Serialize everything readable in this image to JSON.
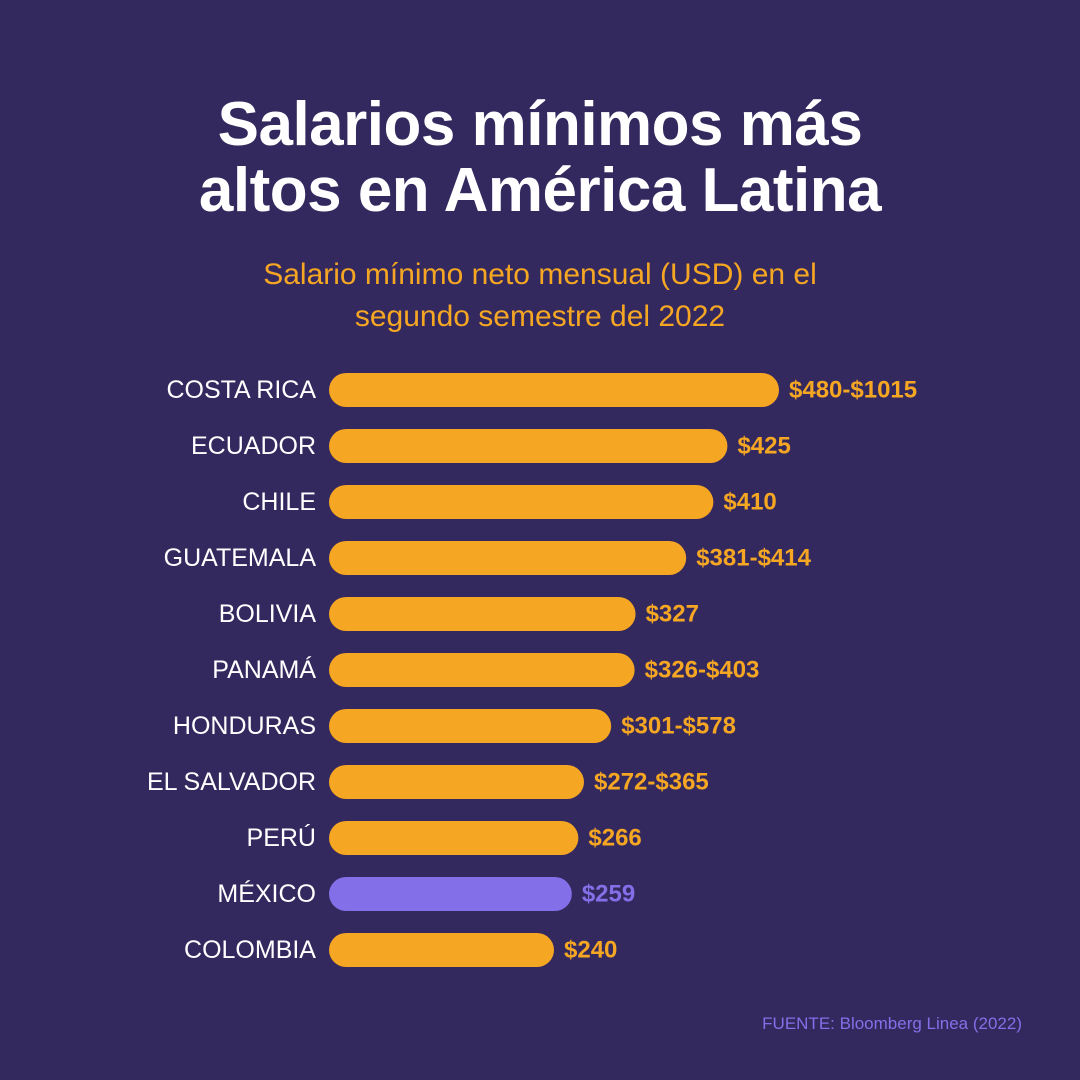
{
  "colors": {
    "background": "#34295e",
    "bar": "#f5a623",
    "highlight": "#8370e8",
    "label": "#ffffff",
    "title": "#ffffff",
    "subtitle": "#f5a623",
    "source": "#8370e8"
  },
  "header": {
    "title_line1": "Salarios mínimos más",
    "title_line2": "altos en América Latina",
    "subtitle_line1": "Salario mínimo neto mensual (USD) en el",
    "subtitle_line2": "segundo semestre del 2022"
  },
  "footer": {
    "source": "FUENTE: Bloomberg Linea (2022)"
  },
  "chart_data": {
    "type": "bar",
    "orientation": "horizontal",
    "title": "Salarios mínimos más altos en América Latina",
    "subtitle": "Salario mínimo neto mensual (USD) en el segundo semestre del 2022",
    "xlabel": "",
    "ylabel": "",
    "unit": "USD",
    "grid": false,
    "categories": [
      "COSTA RICA",
      "ECUADOR",
      "CHILE",
      "GUATEMALA",
      "BOLIVIA",
      "PANAMÁ",
      "HONDURAS",
      "EL SALVADOR",
      "PERÚ",
      "MÉXICO",
      "COLOMBIA"
    ],
    "values": [
      480,
      425,
      410,
      381,
      327,
      326,
      301,
      272,
      266,
      259,
      240
    ],
    "value_labels": [
      "$480-$1015",
      "$425",
      "$410",
      "$381-$414",
      "$327",
      "$326-$403",
      "$301-$578",
      "$272-$365",
      "$266",
      "$259",
      "$240"
    ],
    "highlighted": [
      "MÉXICO"
    ],
    "xlim": [
      0,
      480
    ]
  }
}
